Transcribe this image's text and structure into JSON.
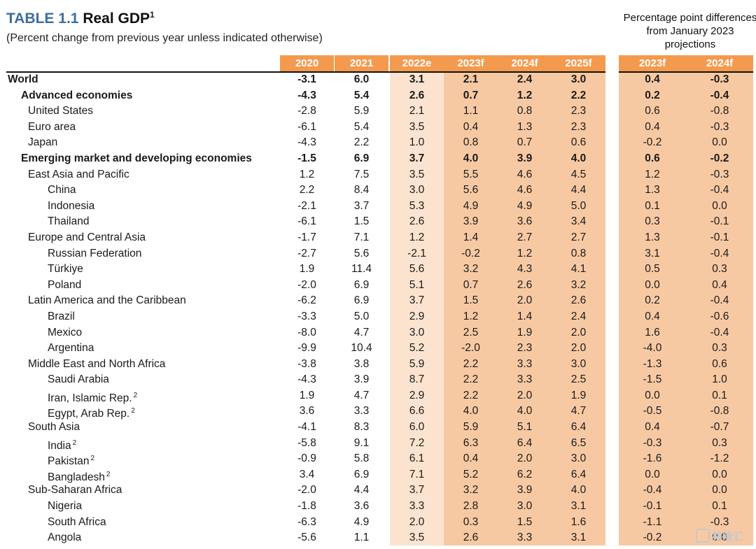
{
  "title": {
    "number": "TABLE 1.1",
    "name": "Real GDP",
    "footnote": "1"
  },
  "subtitle": "(Percent change from previous year unless indicated otherwise)",
  "diff_note": "Percentage point differences from January 2023 projections",
  "columns": [
    "2020",
    "2021",
    "2022e",
    "2023f",
    "2024f",
    "2025f"
  ],
  "diff_columns": [
    "2023f",
    "2024f"
  ],
  "rows": [
    {
      "label": "World",
      "footnote": "",
      "level": 0,
      "bold": true,
      "values": [
        "-3.1",
        "6.0",
        "3.1",
        "2.1",
        "2.4",
        "3.0"
      ],
      "diffs": [
        "0.4",
        "-0.3"
      ]
    },
    {
      "label": "Advanced economies",
      "footnote": "",
      "level": 1,
      "bold": true,
      "values": [
        "-4.3",
        "5.4",
        "2.6",
        "0.7",
        "1.2",
        "2.2"
      ],
      "diffs": [
        "0.2",
        "-0.4"
      ]
    },
    {
      "label": "United States",
      "footnote": "",
      "level": 2,
      "bold": false,
      "values": [
        "-2.8",
        "5.9",
        "2.1",
        "1.1",
        "0.8",
        "2.3"
      ],
      "diffs": [
        "0.6",
        "-0.8"
      ]
    },
    {
      "label": "Euro area",
      "footnote": "",
      "level": 2,
      "bold": false,
      "values": [
        "-6.1",
        "5.4",
        "3.5",
        "0.4",
        "1.3",
        "2.3"
      ],
      "diffs": [
        "0.4",
        "-0.3"
      ]
    },
    {
      "label": "Japan",
      "footnote": "",
      "level": 2,
      "bold": false,
      "values": [
        "-4.3",
        "2.2",
        "1.0",
        "0.8",
        "0.7",
        "0.6"
      ],
      "diffs": [
        "-0.2",
        "0.0"
      ]
    },
    {
      "label": "Emerging market and developing economies",
      "footnote": "",
      "level": 1,
      "bold": true,
      "values": [
        "-1.5",
        "6.9",
        "3.7",
        "4.0",
        "3.9",
        "4.0"
      ],
      "diffs": [
        "0.6",
        "-0.2"
      ]
    },
    {
      "label": "East Asia and Pacific",
      "footnote": "",
      "level": 2,
      "bold": false,
      "values": [
        "1.2",
        "7.5",
        "3.5",
        "5.5",
        "4.6",
        "4.5"
      ],
      "diffs": [
        "1.2",
        "-0.3"
      ]
    },
    {
      "label": "China",
      "footnote": "",
      "level": 3,
      "bold": false,
      "values": [
        "2.2",
        "8.4",
        "3.0",
        "5.6",
        "4.6",
        "4.4"
      ],
      "diffs": [
        "1.3",
        "-0.4"
      ]
    },
    {
      "label": "Indonesia",
      "footnote": "",
      "level": 3,
      "bold": false,
      "values": [
        "-2.1",
        "3.7",
        "5.3",
        "4.9",
        "4.9",
        "5.0"
      ],
      "diffs": [
        "0.1",
        "0.0"
      ]
    },
    {
      "label": "Thailand",
      "footnote": "",
      "level": 3,
      "bold": false,
      "values": [
        "-6.1",
        "1.5",
        "2.6",
        "3.9",
        "3.6",
        "3.4"
      ],
      "diffs": [
        "0.3",
        "-0.1"
      ]
    },
    {
      "label": "Europe and Central Asia",
      "footnote": "",
      "level": 2,
      "bold": false,
      "values": [
        "-1.7",
        "7.1",
        "1.2",
        "1.4",
        "2.7",
        "2.7"
      ],
      "diffs": [
        "1.3",
        "-0.1"
      ]
    },
    {
      "label": "Russian Federation",
      "footnote": "",
      "level": 3,
      "bold": false,
      "values": [
        "-2.7",
        "5.6",
        "-2.1",
        "-0.2",
        "1.2",
        "0.8"
      ],
      "diffs": [
        "3.1",
        "-0.4"
      ]
    },
    {
      "label": "Türkiye",
      "footnote": "",
      "level": 3,
      "bold": false,
      "values": [
        "1.9",
        "11.4",
        "5.6",
        "3.2",
        "4.3",
        "4.1"
      ],
      "diffs": [
        "0.5",
        "0.3"
      ]
    },
    {
      "label": "Poland",
      "footnote": "",
      "level": 3,
      "bold": false,
      "values": [
        "-2.0",
        "6.9",
        "5.1",
        "0.7",
        "2.6",
        "3.2"
      ],
      "diffs": [
        "0.0",
        "0.4"
      ]
    },
    {
      "label": "Latin America and the Caribbean",
      "footnote": "",
      "level": 2,
      "bold": false,
      "values": [
        "-6.2",
        "6.9",
        "3.7",
        "1.5",
        "2.0",
        "2.6"
      ],
      "diffs": [
        "0.2",
        "-0.4"
      ]
    },
    {
      "label": "Brazil",
      "footnote": "",
      "level": 3,
      "bold": false,
      "values": [
        "-3.3",
        "5.0",
        "2.9",
        "1.2",
        "1.4",
        "2.4"
      ],
      "diffs": [
        "0.4",
        "-0.6"
      ]
    },
    {
      "label": "Mexico",
      "footnote": "",
      "level": 3,
      "bold": false,
      "values": [
        "-8.0",
        "4.7",
        "3.0",
        "2.5",
        "1.9",
        "2.0"
      ],
      "diffs": [
        "1.6",
        "-0.4"
      ]
    },
    {
      "label": "Argentina",
      "footnote": "",
      "level": 3,
      "bold": false,
      "values": [
        "-9.9",
        "10.4",
        "5.2",
        "-2.0",
        "2.3",
        "2.0"
      ],
      "diffs": [
        "-4.0",
        "0.3"
      ]
    },
    {
      "label": "Middle East and North Africa",
      "footnote": "",
      "level": 2,
      "bold": false,
      "values": [
        "-3.8",
        "3.8",
        "5.9",
        "2.2",
        "3.3",
        "3.0"
      ],
      "diffs": [
        "-1.3",
        "0.6"
      ]
    },
    {
      "label": "Saudi Arabia",
      "footnote": "",
      "level": 3,
      "bold": false,
      "values": [
        "-4.3",
        "3.9",
        "8.7",
        "2.2",
        "3.3",
        "2.5"
      ],
      "diffs": [
        "-1.5",
        "1.0"
      ]
    },
    {
      "label": "Iran, Islamic Rep.",
      "footnote": "2",
      "level": 3,
      "bold": false,
      "values": [
        "1.9",
        "4.7",
        "2.9",
        "2.2",
        "2.0",
        "1.9"
      ],
      "diffs": [
        "0.0",
        "0.1"
      ]
    },
    {
      "label": "Egypt, Arab Rep.",
      "footnote": "2",
      "level": 3,
      "bold": false,
      "values": [
        "3.6",
        "3.3",
        "6.6",
        "4.0",
        "4.0",
        "4.7"
      ],
      "diffs": [
        "-0.5",
        "-0.8"
      ]
    },
    {
      "label": "South Asia",
      "footnote": "",
      "level": 2,
      "bold": false,
      "values": [
        "-4.1",
        "8.3",
        "6.0",
        "5.9",
        "5.1",
        "6.4"
      ],
      "diffs": [
        "0.4",
        "-0.7"
      ]
    },
    {
      "label": "India",
      "footnote": "2",
      "level": 3,
      "bold": false,
      "values": [
        "-5.8",
        "9.1",
        "7.2",
        "6.3",
        "6.4",
        "6.5"
      ],
      "diffs": [
        "-0.3",
        "0.3"
      ]
    },
    {
      "label": "Pakistan",
      "footnote": "2",
      "level": 3,
      "bold": false,
      "values": [
        "-0.9",
        "5.8",
        "6.1",
        "0.4",
        "2.0",
        "3.0"
      ],
      "diffs": [
        "-1.6",
        "-1.2"
      ]
    },
    {
      "label": "Bangladesh",
      "footnote": "2",
      "level": 3,
      "bold": false,
      "values": [
        "3.4",
        "6.9",
        "7.1",
        "5.2",
        "6.2",
        "6.4"
      ],
      "diffs": [
        "0.0",
        "0.0"
      ]
    },
    {
      "label": "Sub-Saharan Africa",
      "footnote": "",
      "level": 2,
      "bold": false,
      "values": [
        "-2.0",
        "4.4",
        "3.7",
        "3.2",
        "3.9",
        "4.0"
      ],
      "diffs": [
        "-0.4",
        "0.0"
      ]
    },
    {
      "label": "Nigeria",
      "footnote": "",
      "level": 3,
      "bold": false,
      "values": [
        "-1.8",
        "3.6",
        "3.3",
        "2.8",
        "3.0",
        "3.1"
      ],
      "diffs": [
        "-0.1",
        "0.1"
      ]
    },
    {
      "label": "South Africa",
      "footnote": "",
      "level": 3,
      "bold": false,
      "values": [
        "-6.3",
        "4.9",
        "2.0",
        "0.3",
        "1.5",
        "1.6"
      ],
      "diffs": [
        "-1.1",
        "-0.3"
      ]
    },
    {
      "label": "Angola",
      "footnote": "",
      "level": 3,
      "bold": false,
      "values": [
        "-5.6",
        "1.1",
        "3.5",
        "2.6",
        "3.3",
        "3.1"
      ],
      "diffs": [
        "-0.2",
        "0.0"
      ]
    }
  ],
  "watermark": "格隆汇"
}
